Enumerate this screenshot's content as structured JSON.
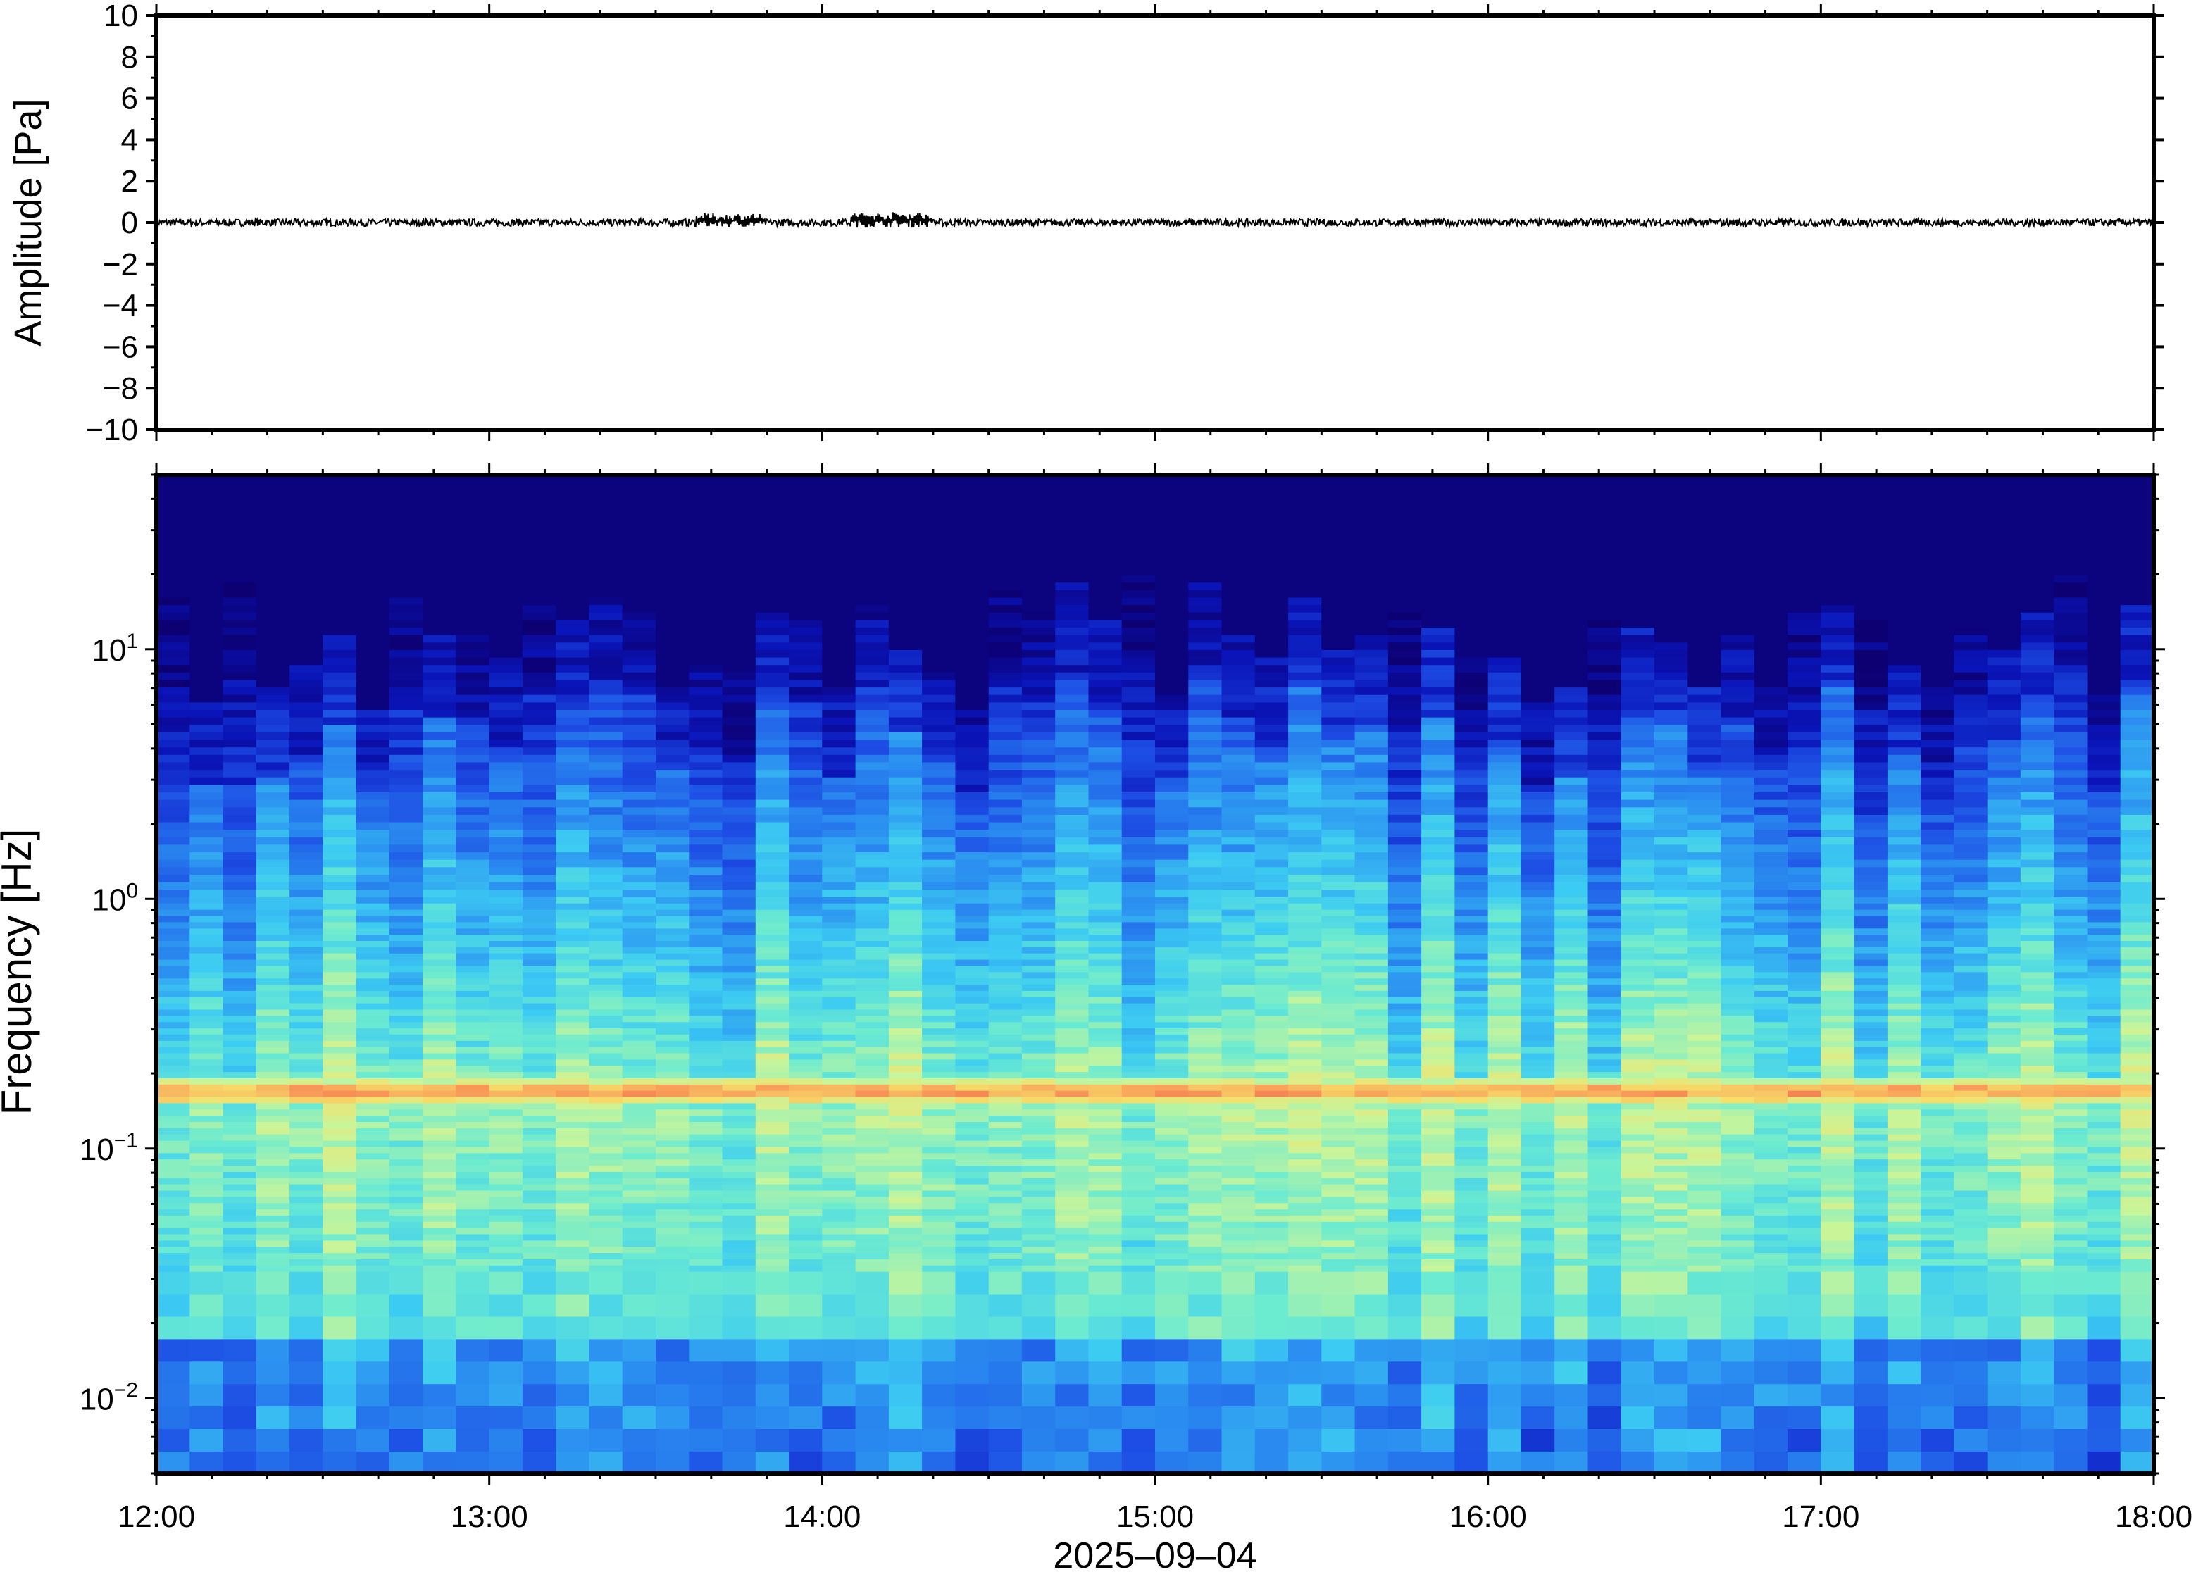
{
  "chart_data": [
    {
      "type": "line",
      "panel": "waveform",
      "ylabel": "Amplitude [Pa]",
      "ylim": [
        -10,
        10
      ],
      "yticks": [
        10,
        8,
        6,
        4,
        2,
        0,
        -2,
        -4,
        -6,
        -8,
        -10
      ],
      "ytick_labels": [
        "10",
        "8",
        "6",
        "4",
        "2",
        "0",
        "−2",
        "−4",
        "−6",
        "−8",
        "−10"
      ],
      "xlim": [
        "12:00",
        "18:00"
      ],
      "series": [
        {
          "x": [
            "12:00",
            "12:30",
            "13:00",
            "13:30",
            "13:42",
            "14:00",
            "14:10",
            "14:30",
            "15:00",
            "15:30",
            "16:00",
            "16:30",
            "17:00",
            "17:30",
            "18:00"
          ],
          "values": [
            0.0,
            0.05,
            -0.05,
            0.0,
            0.5,
            0.0,
            0.6,
            0.0,
            -0.05,
            0.05,
            0.0,
            -0.05,
            0.05,
            0.0,
            0.0
          ],
          "color": "#000000"
        }
      ],
      "grid": false
    },
    {
      "type": "heatmap",
      "panel": "spectrogram",
      "ylabel": "Frequency [Hz]",
      "xlabel": "2025–09–04",
      "yscale": "log",
      "ylim": [
        0.005,
        50
      ],
      "yticks": [
        {
          "base": "10",
          "exp": "1",
          "value": 10
        },
        {
          "base": "10",
          "exp": "0",
          "value": 1
        },
        {
          "base": "10",
          "exp": "−1",
          "value": 0.1
        },
        {
          "base": "10",
          "exp": "−2",
          "value": 0.01
        }
      ],
      "x_tick_labels": [
        "12:00",
        "13:00",
        "14:00",
        "15:00",
        "16:00",
        "17:00",
        "18:00"
      ],
      "time_columns": 60,
      "energy_band_peak_hz": 0.17,
      "colormap": [
        "#0c0073",
        "#0a14b8",
        "#1d4de4",
        "#2a8cf0",
        "#3ccbf2",
        "#6cebd0",
        "#c8f59a",
        "#f6e06a",
        "#f8a25a",
        "#ef4c44"
      ],
      "grid": false
    }
  ]
}
